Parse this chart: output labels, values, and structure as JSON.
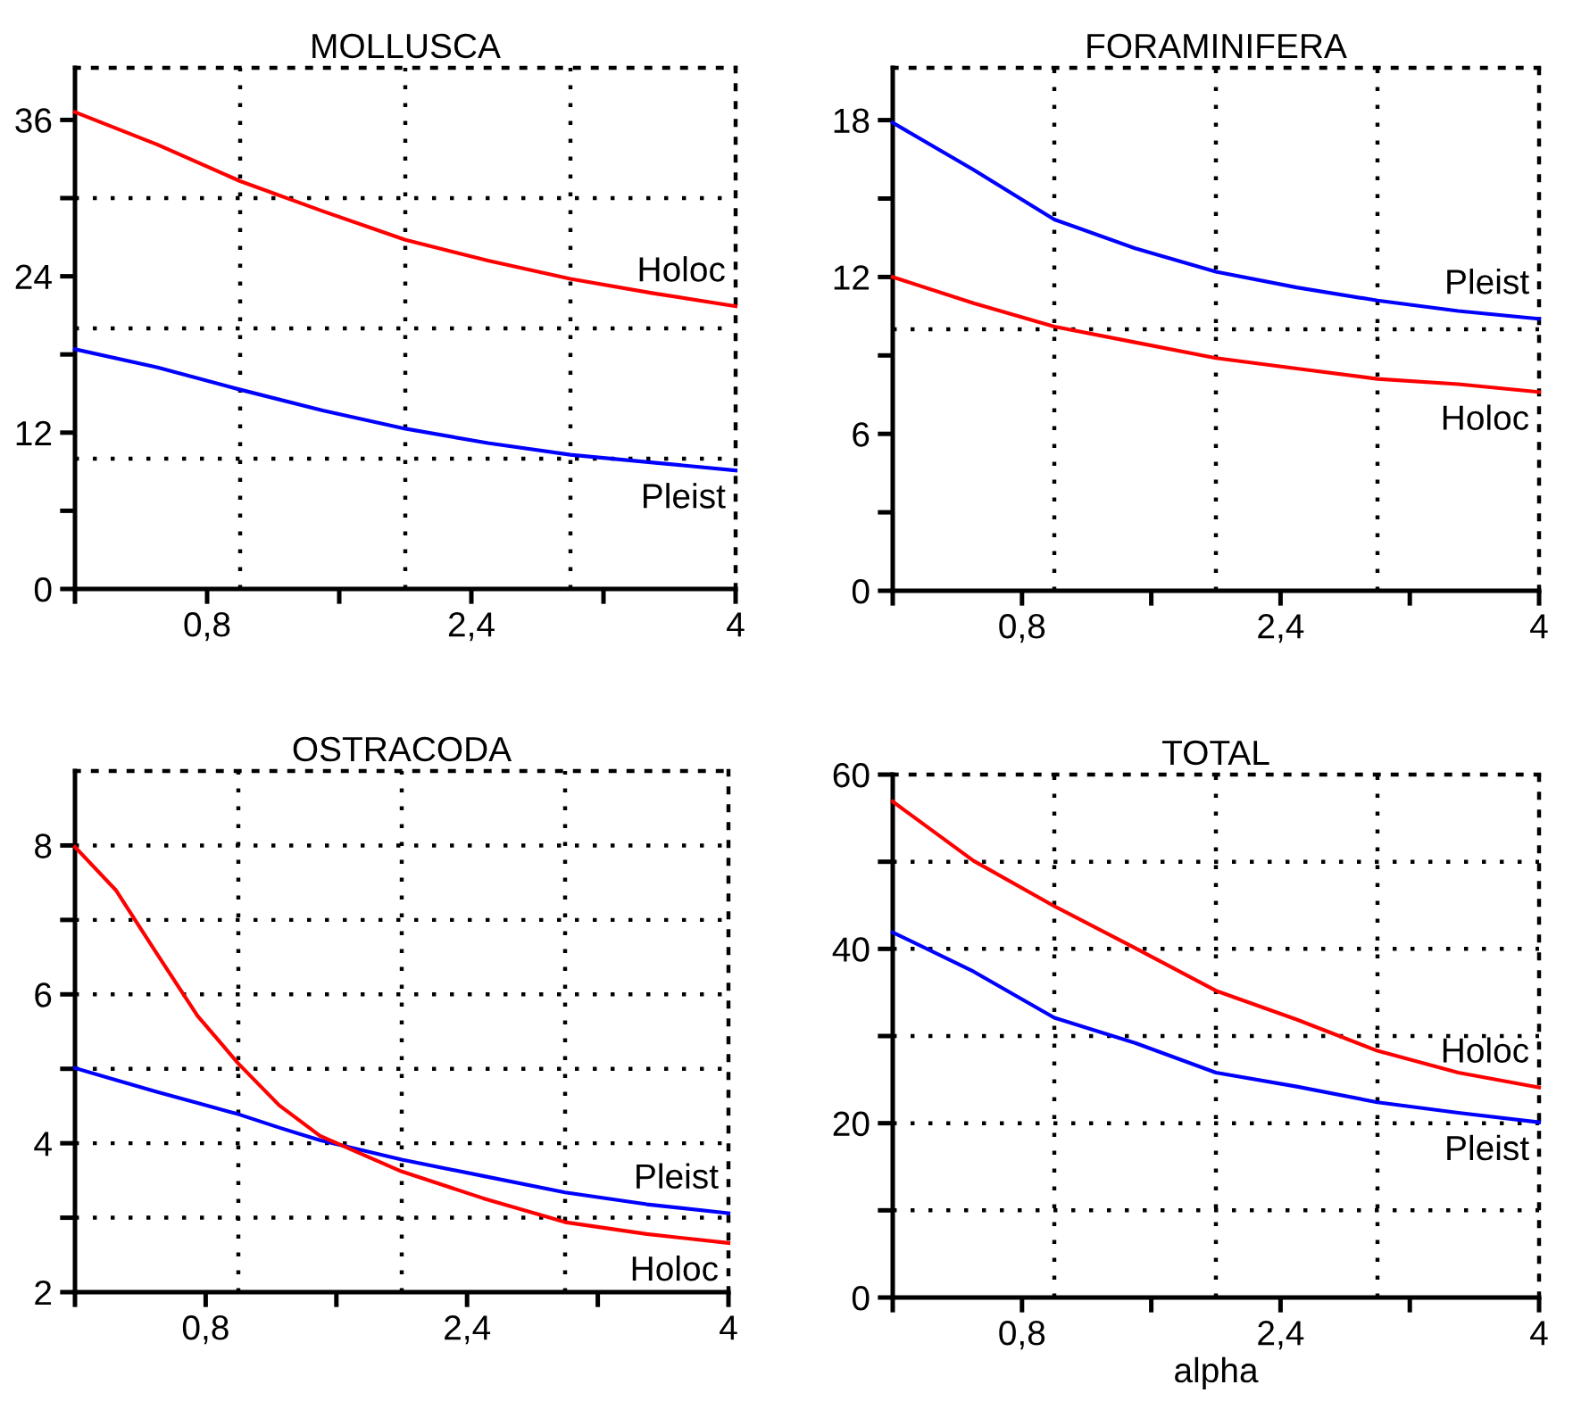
{
  "chart_data": [
    {
      "type": "line",
      "title": "MOLLUSCA",
      "x": [
        0,
        0.5,
        1,
        1.5,
        2,
        2.5,
        3,
        3.5,
        4
      ],
      "xlim": [
        0,
        4
      ],
      "xticks": [
        {
          "value": 0,
          "label": null
        },
        {
          "value": 0.8,
          "label": "0,8"
        },
        {
          "value": 1.6,
          "label": null
        },
        {
          "value": 2.4,
          "label": "2,4"
        },
        {
          "value": 3.2,
          "label": null
        },
        4
      ],
      "ylim": [
        0,
        40
      ],
      "yticks": [
        0,
        {
          "value": 6,
          "label": null
        },
        12,
        {
          "value": 18,
          "label": null
        },
        24,
        {
          "value": 30,
          "label": null
        },
        36
      ],
      "series": [
        {
          "name": "Holoc",
          "color": "#ff0000",
          "values": [
            36.6,
            34.1,
            31.3,
            29.0,
            26.8,
            25.2,
            23.8,
            22.7,
            21.7
          ]
        },
        {
          "name": "Pleist",
          "color": "#0000ff",
          "values": [
            18.4,
            17.0,
            15.3,
            13.7,
            12.3,
            11.2,
            10.3,
            9.7,
            9.1
          ]
        }
      ],
      "ref_lines": [
        {
          "axis": "x",
          "value": 1,
          "color": "#000000",
          "line_style": "dotted"
        },
        {
          "axis": "x",
          "value": 2,
          "color": "#000000",
          "line_style": "dotted"
        },
        {
          "axis": "x",
          "value": 3,
          "color": "#000000",
          "line_style": "dotted"
        },
        {
          "axis": "y",
          "value": 10,
          "color": "#000000",
          "line_style": "dotted"
        },
        {
          "axis": "y",
          "value": 20,
          "color": "#000000",
          "line_style": "dotted"
        },
        {
          "axis": "y",
          "value": 30,
          "color": "#000000",
          "line_style": "dotted"
        }
      ]
    },
    {
      "type": "line",
      "title": "FORAMINIFERA",
      "x": [
        0,
        0.5,
        1,
        1.5,
        2,
        2.5,
        3,
        3.5,
        4
      ],
      "xlim": [
        0,
        4
      ],
      "xticks": [
        {
          "value": 0,
          "label": null
        },
        {
          "value": 0.8,
          "label": "0,8"
        },
        {
          "value": 1.6,
          "label": null
        },
        {
          "value": 2.4,
          "label": "2,4"
        },
        {
          "value": 3.2,
          "label": null
        },
        4
      ],
      "ylim": [
        0,
        20
      ],
      "yticks": [
        0,
        {
          "value": 3,
          "label": null
        },
        6,
        {
          "value": 9,
          "label": null
        },
        12,
        {
          "value": 15,
          "label": null
        },
        18
      ],
      "series": [
        {
          "name": "Pleist",
          "color": "#0000ff",
          "values": [
            17.9,
            16.1,
            14.2,
            13.1,
            12.2,
            11.6,
            11.1,
            10.7,
            10.4
          ]
        },
        {
          "name": "Holoc",
          "color": "#ff0000",
          "values": [
            12.0,
            11.0,
            10.1,
            9.5,
            8.9,
            8.5,
            8.1,
            7.9,
            7.6
          ]
        }
      ],
      "ref_lines": [
        {
          "axis": "x",
          "value": 1,
          "color": "#000000",
          "line_style": "dotted"
        },
        {
          "axis": "x",
          "value": 2,
          "color": "#000000",
          "line_style": "dotted"
        },
        {
          "axis": "x",
          "value": 3,
          "color": "#000000",
          "line_style": "dotted"
        },
        {
          "axis": "y",
          "value": 10,
          "color": "#000000",
          "line_style": "dotted"
        }
      ]
    },
    {
      "type": "line",
      "title": "OSTRACODA",
      "x": [
        0,
        0.25,
        0.5,
        0.75,
        1,
        1.25,
        1.5,
        2,
        2.5,
        3,
        3.5,
        4
      ],
      "xlim": [
        0,
        4
      ],
      "xticks": [
        {
          "value": 0,
          "label": null
        },
        {
          "value": 0.8,
          "label": "0,8"
        },
        {
          "value": 1.6,
          "label": null
        },
        {
          "value": 2.4,
          "label": "2,4"
        },
        {
          "value": 3.2,
          "label": null
        },
        4
      ],
      "ylim": [
        2,
        9
      ],
      "yticks": [
        2,
        {
          "value": 3,
          "label": null
        },
        4,
        {
          "value": 5,
          "label": null
        },
        6,
        {
          "value": 7,
          "label": null
        },
        8
      ],
      "series": [
        {
          "name": "Pleist",
          "color": "#0000ff",
          "values": [
            5.01,
            4.85,
            4.69,
            4.54,
            4.39,
            4.21,
            4.04,
            3.78,
            3.56,
            3.34,
            3.18,
            3.06
          ]
        },
        {
          "name": "Holoc",
          "color": "#ff0000",
          "values": [
            7.98,
            7.4,
            6.55,
            5.71,
            5.07,
            4.51,
            4.1,
            3.62,
            3.26,
            2.94,
            2.78,
            2.66
          ]
        }
      ],
      "ref_lines": [
        {
          "axis": "x",
          "value": 1,
          "color": "#000000",
          "line_style": "dotted"
        },
        {
          "axis": "x",
          "value": 2,
          "color": "#000000",
          "line_style": "dotted"
        },
        {
          "axis": "x",
          "value": 3,
          "color": "#000000",
          "line_style": "dotted"
        },
        {
          "axis": "y",
          "value": 3,
          "color": "#000000",
          "line_style": "dotted"
        },
        {
          "axis": "y",
          "value": 4,
          "color": "#000000",
          "line_style": "dotted"
        },
        {
          "axis": "y",
          "value": 5,
          "color": "#000000",
          "line_style": "dotted"
        },
        {
          "axis": "y",
          "value": 6,
          "color": "#000000",
          "line_style": "dotted"
        },
        {
          "axis": "y",
          "value": 7,
          "color": "#000000",
          "line_style": "dotted"
        },
        {
          "axis": "y",
          "value": 8,
          "color": "#000000",
          "line_style": "dotted"
        }
      ]
    },
    {
      "type": "line",
      "title": "TOTAL",
      "xlabel": "alpha",
      "x": [
        0,
        0.5,
        1,
        1.5,
        2,
        2.5,
        3,
        3.5,
        4
      ],
      "xlim": [
        0,
        4
      ],
      "xticks": [
        {
          "value": 0,
          "label": null
        },
        {
          "value": 0.8,
          "label": "0,8"
        },
        {
          "value": 1.6,
          "label": null
        },
        {
          "value": 2.4,
          "label": "2,4"
        },
        {
          "value": 3.2,
          "label": null
        },
        4
      ],
      "ylim": [
        0,
        60
      ],
      "yticks": [
        0,
        {
          "value": 10,
          "label": null
        },
        20,
        {
          "value": 30,
          "label": null
        },
        40,
        {
          "value": 50,
          "label": null
        },
        60
      ],
      "series": [
        {
          "name": "Holoc",
          "color": "#ff0000",
          "values": [
            56.9,
            50.1,
            44.9,
            40.1,
            35.2,
            31.9,
            28.3,
            25.8,
            24.1
          ]
        },
        {
          "name": "Pleist",
          "color": "#0000ff",
          "values": [
            41.9,
            37.4,
            32.1,
            29.2,
            25.8,
            24.2,
            22.4,
            21.2,
            20.1
          ]
        }
      ],
      "ref_lines": [
        {
          "axis": "x",
          "value": 1,
          "color": "#000000",
          "line_style": "dotted"
        },
        {
          "axis": "x",
          "value": 2,
          "color": "#000000",
          "line_style": "dotted"
        },
        {
          "axis": "x",
          "value": 3,
          "color": "#000000",
          "line_style": "dotted"
        },
        {
          "axis": "y",
          "value": 10,
          "color": "#000000",
          "line_style": "dotted"
        },
        {
          "axis": "y",
          "value": 20,
          "color": "#000000",
          "line_style": "dotted"
        },
        {
          "axis": "y",
          "value": 30,
          "color": "#000000",
          "line_style": "dotted"
        },
        {
          "axis": "y",
          "value": 40,
          "color": "#000000",
          "line_style": "dotted"
        },
        {
          "axis": "y",
          "value": 50,
          "color": "#000000",
          "line_style": "dotted"
        }
      ]
    }
  ]
}
